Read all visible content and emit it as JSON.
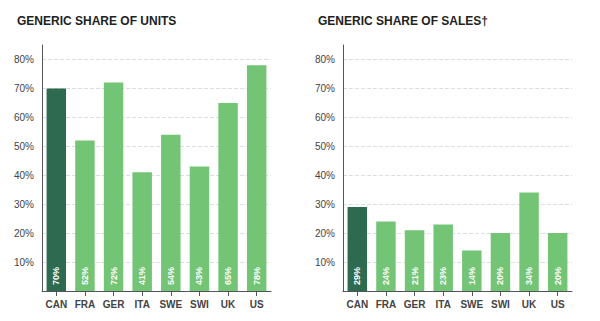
{
  "chart_data": [
    {
      "type": "bar",
      "title": "GENERIC SHARE OF UNITS",
      "categories": [
        "CAN",
        "FRA",
        "GER",
        "ITA",
        "SWE",
        "SWI",
        "UK",
        "US"
      ],
      "values": [
        70,
        52,
        72,
        41,
        54,
        43,
        65,
        78
      ],
      "value_labels": [
        "70%",
        "52%",
        "72%",
        "41%",
        "54%",
        "43%",
        "65%",
        "78%"
      ],
      "data_labels": true,
      "colors": [
        "#2d6a4f",
        "#74c476",
        "#74c476",
        "#74c476",
        "#74c476",
        "#74c476",
        "#74c476",
        "#74c476"
      ],
      "ylim": [
        0,
        85
      ],
      "yticks": [
        {
          "value": 10,
          "label": "10%"
        },
        {
          "value": 20,
          "label": "20%"
        },
        {
          "value": 30,
          "label": "30%"
        },
        {
          "value": 40,
          "label": "40%"
        },
        {
          "value": 50,
          "label": "50%"
        },
        {
          "value": 60,
          "label": "60%"
        },
        {
          "value": 70,
          "label": "70%"
        },
        {
          "value": 80,
          "label": "80%"
        }
      ],
      "grid": true
    },
    {
      "type": "bar",
      "title": "GENERIC SHARE OF SALES†",
      "categories": [
        "CAN",
        "FRA",
        "GER",
        "ITA",
        "SWE",
        "SWI",
        "UK",
        "US"
      ],
      "values": [
        29,
        24,
        21,
        23,
        14,
        20,
        34,
        20
      ],
      "value_labels": [
        "29%",
        "24%",
        "21%",
        "23%",
        "14%",
        "20%",
        "34%",
        "20%"
      ],
      "data_labels": true,
      "colors": [
        "#2d6a4f",
        "#74c476",
        "#74c476",
        "#74c476",
        "#74c476",
        "#74c476",
        "#74c476",
        "#74c476"
      ],
      "ylim": [
        0,
        85
      ],
      "yticks": [
        {
          "value": 10,
          "label": "10%"
        },
        {
          "value": 20,
          "label": "20%"
        },
        {
          "value": 30,
          "label": "30%"
        },
        {
          "value": 40,
          "label": "40%"
        },
        {
          "value": 50,
          "label": "50%"
        },
        {
          "value": 60,
          "label": "60%"
        },
        {
          "value": 70,
          "label": "70%"
        },
        {
          "value": 80,
          "label": "80%"
        }
      ],
      "grid": true
    }
  ]
}
